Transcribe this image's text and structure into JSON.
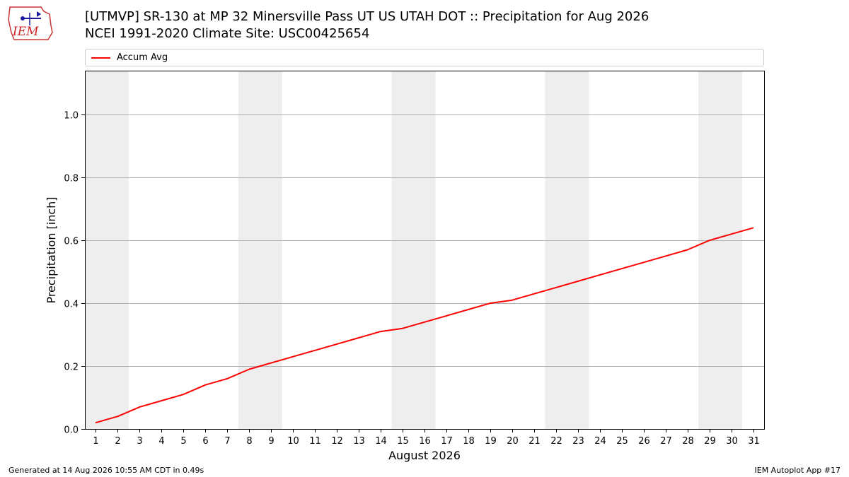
{
  "header": {
    "logo_text": "IEM",
    "title_line1": "[UTMVP] SR-130 at MP 32 Minersville Pass UT US UTAH DOT :: Precipitation for Aug 2026",
    "title_line2": "NCEI 1991-2020 Climate Site: USC00425654"
  },
  "legend": {
    "label": "Accum Avg"
  },
  "footer": {
    "left": "Generated at 14 Aug 2026 10:55 AM CDT in 0.49s",
    "right": "IEM Autoplot App #17"
  },
  "colors": {
    "series": "#ff0000",
    "weekend_band": "#eeeeee",
    "grid": "#b0b0b0"
  },
  "chart_data": {
    "type": "line",
    "xlabel": "August 2026",
    "ylabel": "Precipitation [inch]",
    "x": [
      1,
      2,
      3,
      4,
      5,
      6,
      7,
      8,
      9,
      10,
      11,
      12,
      13,
      14,
      15,
      16,
      17,
      18,
      19,
      20,
      21,
      22,
      23,
      24,
      25,
      26,
      27,
      28,
      29,
      30,
      31
    ],
    "xlim": [
      0.5,
      31.5
    ],
    "ylim": [
      0,
      1.14
    ],
    "yticks": [
      0.0,
      0.2,
      0.4,
      0.6,
      0.8,
      1.0
    ],
    "ytick_labels": [
      "0.0",
      "0.2",
      "0.4",
      "0.6",
      "0.8",
      "1.0"
    ],
    "xtick_labels": [
      "1",
      "2",
      "3",
      "4",
      "5",
      "6",
      "7",
      "8",
      "9",
      "10",
      "11",
      "12",
      "13",
      "14",
      "15",
      "16",
      "17",
      "18",
      "19",
      "20",
      "21",
      "22",
      "23",
      "24",
      "25",
      "26",
      "27",
      "28",
      "29",
      "30",
      "31"
    ],
    "grid": "horizontal",
    "legend_position": "top",
    "shaded_days": [
      [
        1,
        2
      ],
      [
        8,
        9
      ],
      [
        15,
        16
      ],
      [
        22,
        23
      ],
      [
        29,
        30
      ]
    ],
    "series": [
      {
        "name": "Accum Avg",
        "values": [
          0.02,
          0.04,
          0.07,
          0.09,
          0.11,
          0.14,
          0.16,
          0.19,
          0.21,
          0.23,
          0.25,
          0.27,
          0.29,
          0.31,
          0.32,
          0.34,
          0.36,
          0.38,
          0.4,
          0.41,
          0.43,
          0.45,
          0.47,
          0.49,
          0.51,
          0.53,
          0.55,
          0.57,
          0.6,
          0.62,
          0.64
        ]
      }
    ]
  }
}
